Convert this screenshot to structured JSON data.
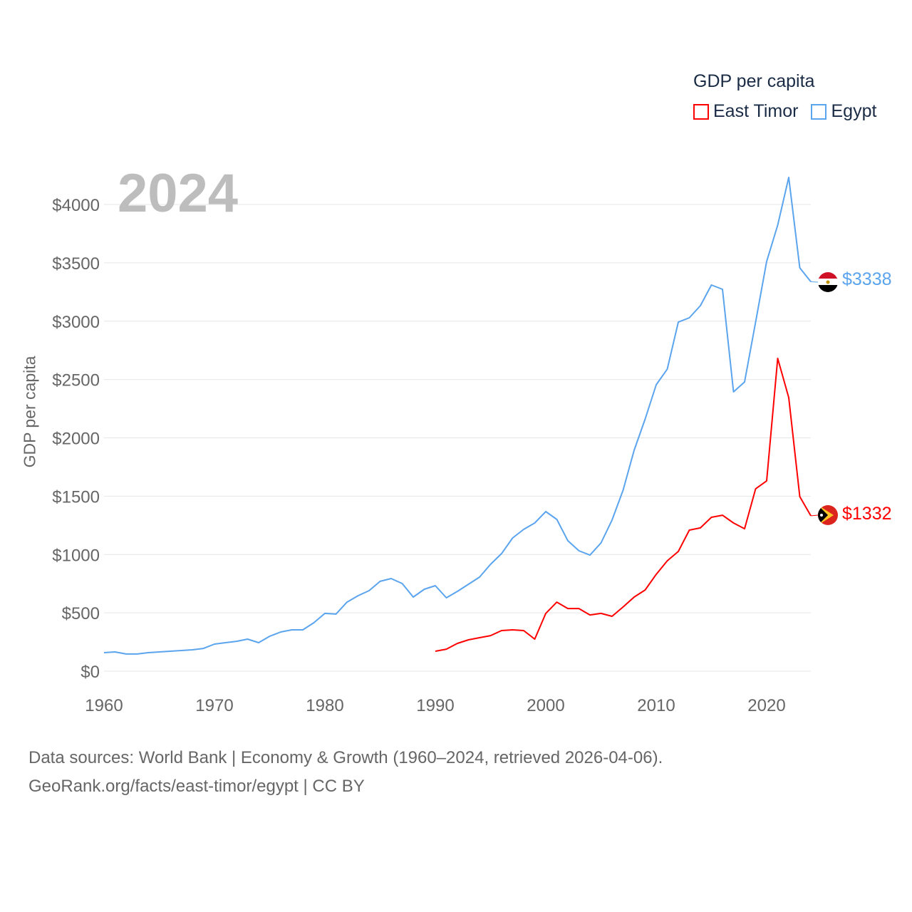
{
  "chart_data": {
    "type": "line",
    "title": "GDP per capita",
    "ylabel": "GDP per capita",
    "xlabel": "",
    "year_label": "2024",
    "xlim": [
      1960,
      2024
    ],
    "ylim": [
      0,
      4300
    ],
    "x_ticks": [
      "1960",
      "1970",
      "1980",
      "1990",
      "2000",
      "2010",
      "2020"
    ],
    "y_ticks": [
      "$0",
      "$500",
      "$1000",
      "$1500",
      "$2000",
      "$2500",
      "$3000",
      "$3500",
      "$4000"
    ],
    "grid": true,
    "legend_placement": "top-right",
    "series": [
      {
        "name": "East Timor",
        "color": "#ff0000",
        "end_label": "$1332",
        "start_year": 1990,
        "values": [
          171,
          189,
          238,
          269,
          287,
          305,
          348,
          354,
          348,
          275,
          495,
          592,
          537,
          537,
          482,
          495,
          470,
          550,
          635,
          696,
          830,
          946,
          1026,
          1209,
          1228,
          1319,
          1337,
          1270,
          1221,
          1563,
          1631,
          2681,
          2345,
          1496,
          1332
        ]
      },
      {
        "name": "Egypt",
        "color": "#5ba4ee",
        "end_label": "$3338",
        "start_year": 1960,
        "values": [
          159,
          165,
          147,
          147,
          159,
          165,
          171,
          177,
          183,
          195,
          232,
          244,
          256,
          275,
          244,
          299,
          336,
          354,
          354,
          415,
          495,
          489,
          592,
          647,
          690,
          770,
          794,
          751,
          635,
          702,
          733,
          629,
          684,
          745,
          806,
          916,
          1008,
          1142,
          1215,
          1270,
          1368,
          1301,
          1118,
          1032,
          995,
          1099,
          1295,
          1551,
          1893,
          2162,
          2455,
          2589,
          2992,
          3029,
          3133,
          3310,
          3273,
          2394,
          2479,
          2992,
          3512,
          3823,
          4232,
          3457,
          3338
        ]
      }
    ]
  },
  "footer": {
    "line1": "Data sources: World Bank | Economy & Growth (1960–2024, retrieved 2026-04-06).",
    "line2": "GeoRank.org/facts/east-timor/egypt | CC BY"
  }
}
